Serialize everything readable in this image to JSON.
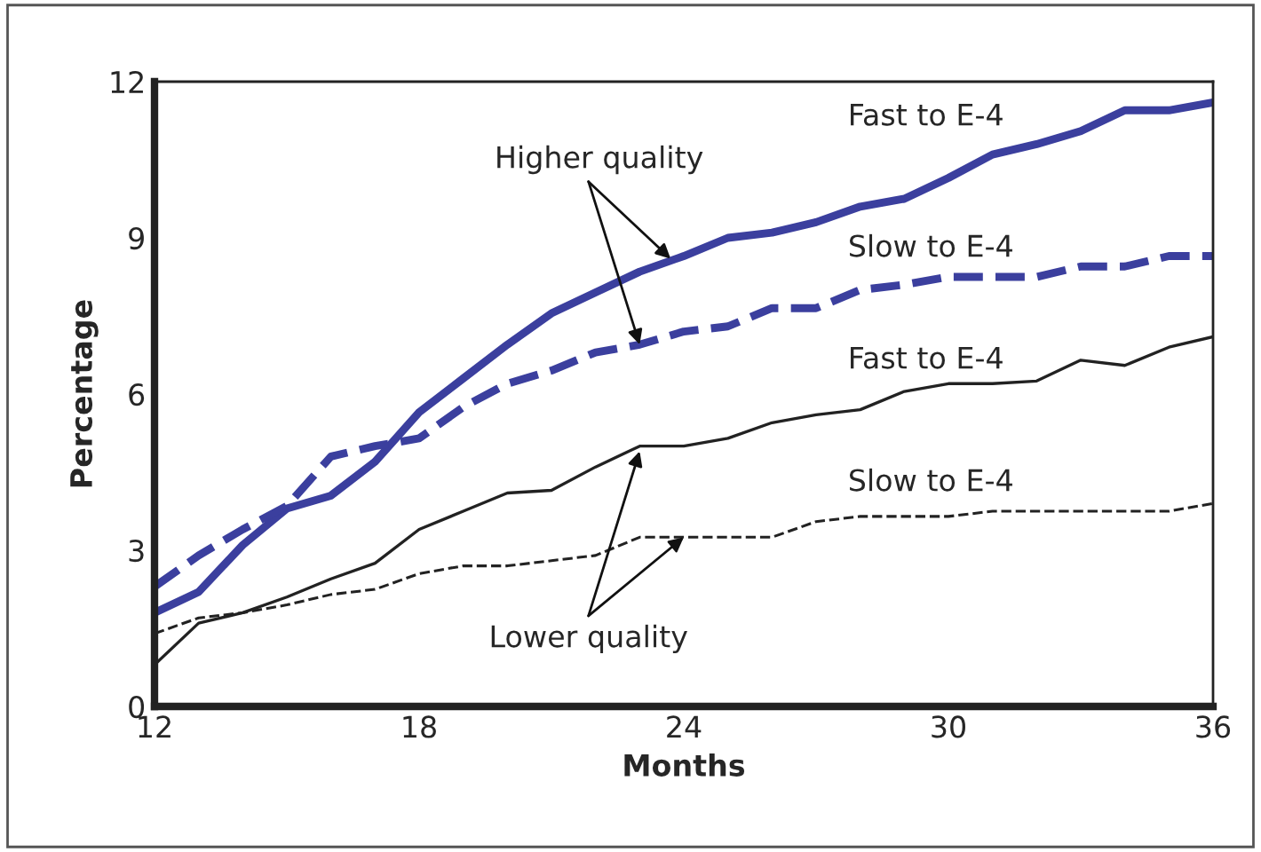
{
  "chart_data": {
    "type": "line",
    "xlabel": "Months",
    "ylabel": "Percentage",
    "x": [
      12,
      13,
      14,
      15,
      16,
      17,
      18,
      19,
      20,
      21,
      22,
      23,
      24,
      25,
      26,
      27,
      28,
      29,
      30,
      31,
      32,
      33,
      34,
      35,
      36
    ],
    "xlim": [
      12,
      36
    ],
    "xticks": [
      12,
      18,
      24,
      30,
      36
    ],
    "ylim": [
      0,
      12
    ],
    "yticks": [
      0,
      3,
      6,
      9,
      12
    ],
    "grid": false,
    "legend": false,
    "series": [
      {
        "name": "Fast to E-4",
        "color": "#3b3f9e",
        "line_style": "solid",
        "values": [
          1.8,
          2.2,
          3.1,
          3.8,
          4.05,
          4.7,
          5.65,
          6.3,
          6.95,
          7.55,
          7.95,
          8.35,
          8.65,
          9.0,
          9.1,
          9.3,
          9.6,
          9.75,
          10.15,
          10.6,
          10.8,
          11.05,
          11.45,
          11.45,
          11.6
        ]
      },
      {
        "name": "Slow to E-4",
        "color": "#3b3f9e",
        "line_style": "dashed",
        "values": [
          2.3,
          2.9,
          3.4,
          3.85,
          4.8,
          5.0,
          5.15,
          5.75,
          6.2,
          6.45,
          6.8,
          6.95,
          7.2,
          7.3,
          7.65,
          7.65,
          8.0,
          8.1,
          8.25,
          8.25,
          8.25,
          8.45,
          8.45,
          8.65,
          8.65
        ]
      },
      {
        "name": "Fast to E-4",
        "color": "#222222",
        "line_style": "solid",
        "values": [
          0.8,
          1.6,
          1.8,
          2.1,
          2.45,
          2.75,
          3.4,
          3.75,
          4.1,
          4.15,
          4.6,
          5.0,
          5.0,
          5.15,
          5.45,
          5.6,
          5.7,
          6.05,
          6.2,
          6.2,
          6.25,
          6.65,
          6.55,
          6.9,
          7.1
        ]
      },
      {
        "name": "Slow to E-4",
        "color": "#222222",
        "line_style": "dashed",
        "values": [
          1.4,
          1.7,
          1.8,
          1.95,
          2.15,
          2.25,
          2.55,
          2.7,
          2.7,
          2.8,
          2.9,
          3.25,
          3.25,
          3.25,
          3.25,
          3.55,
          3.65,
          3.65,
          3.65,
          3.75,
          3.75,
          3.75,
          3.75,
          3.75,
          3.9
        ]
      }
    ],
    "annotations": [
      {
        "text": "Higher quality",
        "x": 23.7,
        "y": 8.6
      },
      {
        "text": "Lower quality",
        "x": 23.0,
        "y": 4.9
      }
    ]
  }
}
